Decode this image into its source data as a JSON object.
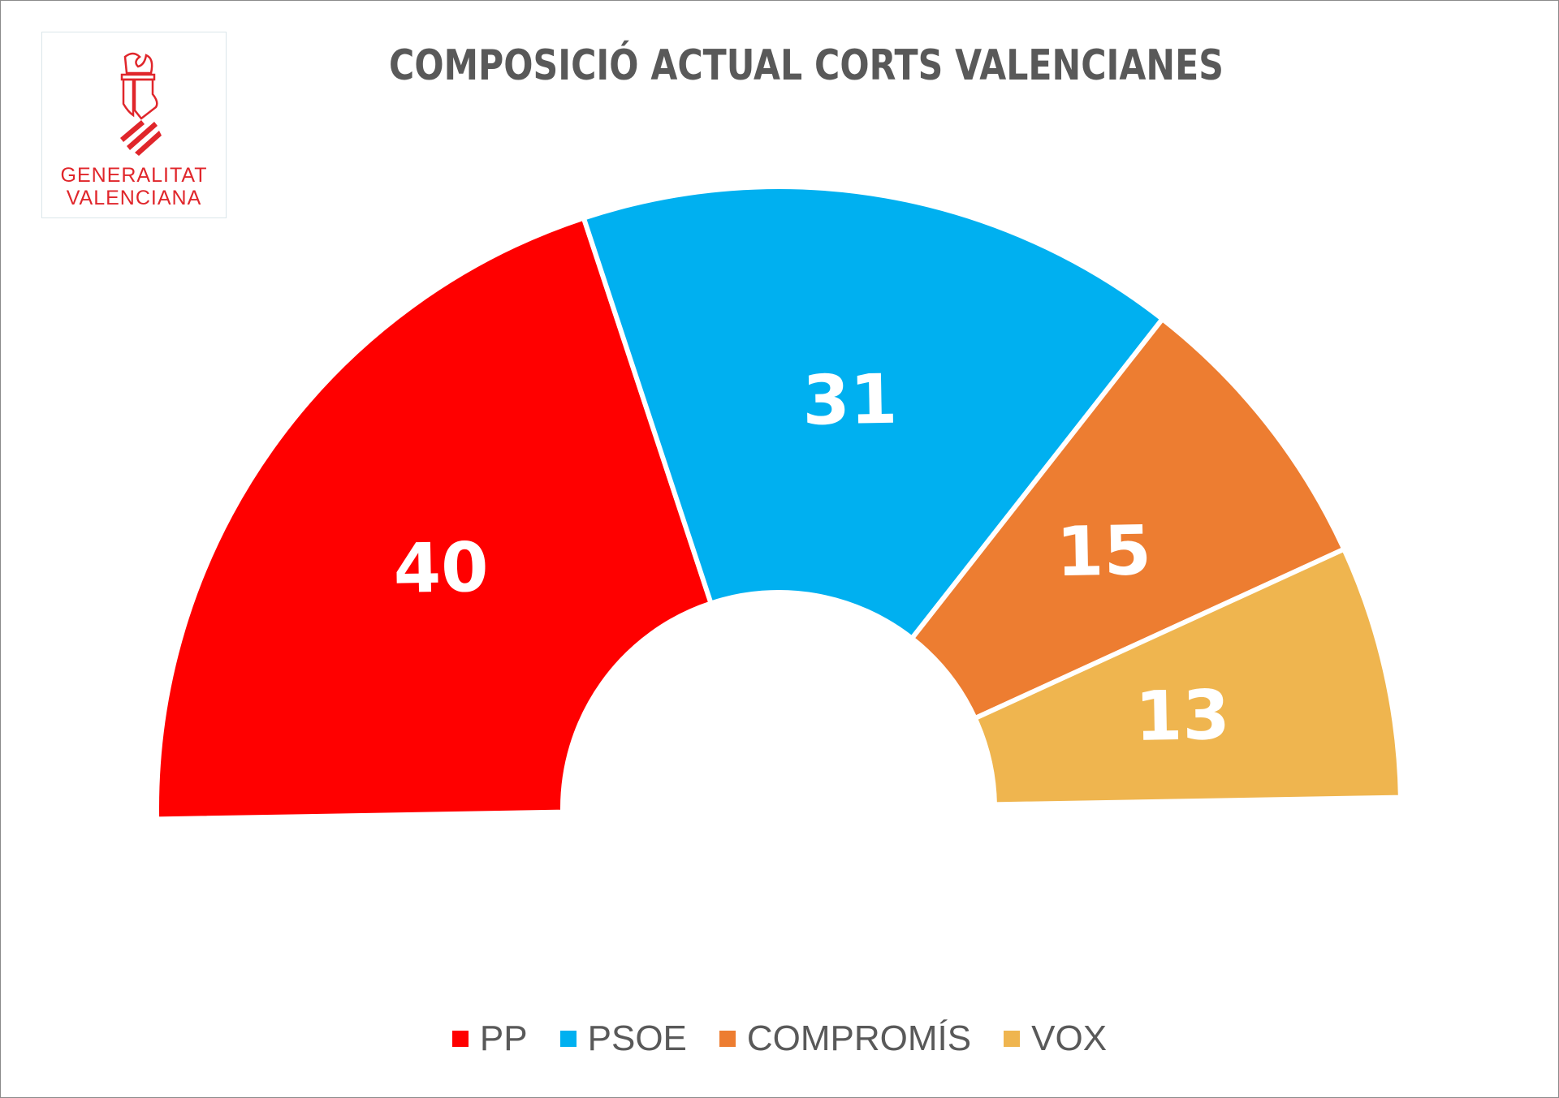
{
  "logo": {
    "line1": "GENERALITAT",
    "line2": "VALENCIANA"
  },
  "chart_data": {
    "type": "pie",
    "variant": "half-donut",
    "title": "COMPOSICIÓ ACTUAL CORTS VALENCIANES",
    "categories": [
      "PP",
      "PSOE",
      "COMPROMÍS",
      "VOX"
    ],
    "values": [
      40,
      31,
      15,
      13
    ],
    "colors": [
      "#ff0000",
      "#00b0f0",
      "#ed7d31",
      "#efb54f"
    ],
    "legend_position": "bottom"
  }
}
